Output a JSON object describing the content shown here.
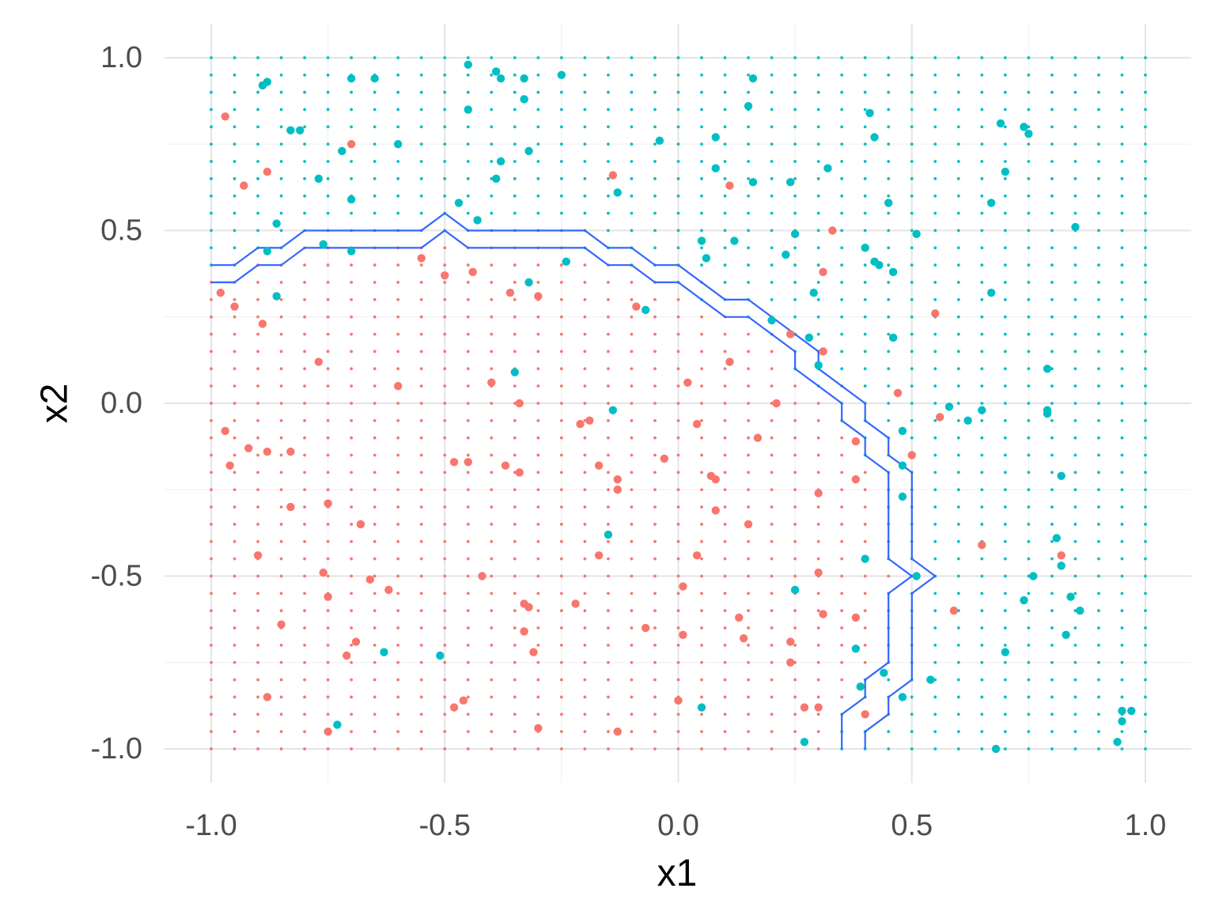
{
  "chart_data": {
    "type": "scatter",
    "title": "",
    "xlabel": "x1",
    "ylabel": "x2",
    "xlim": [
      -1.1,
      1.1
    ],
    "ylim": [
      -1.1,
      1.1
    ],
    "x_ticks": [
      -1.0,
      -0.5,
      0.0,
      0.5,
      1.0
    ],
    "y_ticks": [
      -1.0,
      -0.5,
      0.0,
      0.5,
      1.0
    ],
    "x_tick_labels": [
      "-1.0",
      "-0.5",
      "0.0",
      "0.5",
      "1.0"
    ],
    "y_tick_labels": [
      "-1.0",
      "-0.5",
      "0.0",
      "0.5",
      "1.0"
    ],
    "grid": true,
    "legend": "none",
    "colors": {
      "class_red": "#F8766D",
      "class_teal": "#00BFC4",
      "boundary": "#3366FF",
      "grid_major": "#e5e5e5",
      "grid_minor": "#f2f2f2"
    },
    "background_grid": {
      "x_range": [
        -1.0,
        1.0
      ],
      "y_range": [
        -1.0,
        1.0
      ],
      "step": 0.05,
      "rule": "red if point lies below/left of the lower boundary line, teal otherwise"
    },
    "boundaries": [
      {
        "name": "",
        "points": [
          [
            -1.0,
            0.4
          ],
          [
            -0.95,
            0.4
          ],
          [
            -0.9,
            0.45
          ],
          [
            -0.85,
            0.45
          ],
          [
            -0.8,
            0.5
          ],
          [
            -0.55,
            0.5
          ],
          [
            -0.5,
            0.55
          ],
          [
            -0.45,
            0.5
          ],
          [
            -0.2,
            0.5
          ],
          [
            -0.15,
            0.45
          ],
          [
            -0.1,
            0.45
          ],
          [
            -0.05,
            0.4
          ],
          [
            0.0,
            0.4
          ],
          [
            0.1,
            0.3
          ],
          [
            0.15,
            0.3
          ],
          [
            0.2,
            0.25
          ],
          [
            0.25,
            0.2
          ],
          [
            0.3,
            0.15
          ],
          [
            0.3,
            0.1
          ],
          [
            0.35,
            0.05
          ],
          [
            0.4,
            0.0
          ],
          [
            0.4,
            -0.05
          ],
          [
            0.45,
            -0.1
          ],
          [
            0.45,
            -0.15
          ],
          [
            0.5,
            -0.2
          ],
          [
            0.5,
            -0.45
          ],
          [
            0.55,
            -0.5
          ],
          [
            0.5,
            -0.55
          ],
          [
            0.5,
            -0.8
          ],
          [
            0.45,
            -0.85
          ],
          [
            0.45,
            -0.9
          ],
          [
            0.4,
            -0.95
          ],
          [
            0.4,
            -1.0
          ]
        ]
      },
      {
        "name": "",
        "points": [
          [
            -1.0,
            0.35
          ],
          [
            -0.95,
            0.35
          ],
          [
            -0.9,
            0.4
          ],
          [
            -0.85,
            0.4
          ],
          [
            -0.8,
            0.45
          ],
          [
            -0.55,
            0.45
          ],
          [
            -0.5,
            0.5
          ],
          [
            -0.45,
            0.45
          ],
          [
            -0.2,
            0.45
          ],
          [
            -0.15,
            0.4
          ],
          [
            -0.1,
            0.4
          ],
          [
            -0.05,
            0.35
          ],
          [
            0.0,
            0.35
          ],
          [
            0.1,
            0.25
          ],
          [
            0.15,
            0.25
          ],
          [
            0.2,
            0.2
          ],
          [
            0.25,
            0.15
          ],
          [
            0.25,
            0.1
          ],
          [
            0.3,
            0.05
          ],
          [
            0.35,
            0.0
          ],
          [
            0.35,
            -0.05
          ],
          [
            0.4,
            -0.1
          ],
          [
            0.4,
            -0.15
          ],
          [
            0.45,
            -0.2
          ],
          [
            0.45,
            -0.45
          ],
          [
            0.5,
            -0.5
          ],
          [
            0.45,
            -0.55
          ],
          [
            0.45,
            -0.75
          ],
          [
            0.4,
            -0.8
          ],
          [
            0.4,
            -0.85
          ],
          [
            0.35,
            -0.9
          ],
          [
            0.35,
            -1.0
          ]
        ]
      }
    ],
    "series": [
      {
        "name": "",
        "color": "#F8766D",
        "points": [
          [
            -0.97,
            0.83
          ],
          [
            -0.93,
            0.63
          ],
          [
            -0.88,
            0.67
          ],
          [
            -0.7,
            0.75
          ],
          [
            -0.14,
            0.66
          ],
          [
            0.11,
            0.63
          ],
          [
            0.33,
            0.5
          ],
          [
            0.31,
            0.38
          ],
          [
            -0.55,
            0.42
          ],
          [
            -0.5,
            0.37
          ],
          [
            -0.44,
            0.38
          ],
          [
            -0.36,
            0.32
          ],
          [
            -0.3,
            0.31
          ],
          [
            -0.09,
            0.28
          ],
          [
            -0.98,
            0.32
          ],
          [
            -0.95,
            0.28
          ],
          [
            -0.89,
            0.23
          ],
          [
            -0.77,
            0.12
          ],
          [
            -0.6,
            0.05
          ],
          [
            -0.4,
            0.06
          ],
          [
            -0.34,
            0.0
          ],
          [
            -0.97,
            -0.08
          ],
          [
            -0.92,
            -0.13
          ],
          [
            -0.88,
            -0.14
          ],
          [
            -0.83,
            -0.14
          ],
          [
            -0.96,
            -0.18
          ],
          [
            -0.83,
            -0.3
          ],
          [
            -0.75,
            -0.29
          ],
          [
            -0.68,
            -0.35
          ],
          [
            -0.9,
            -0.44
          ],
          [
            -0.76,
            -0.49
          ],
          [
            -0.66,
            -0.51
          ],
          [
            -0.62,
            -0.54
          ],
          [
            -0.75,
            -0.56
          ],
          [
            -0.85,
            -0.64
          ],
          [
            -0.69,
            -0.69
          ],
          [
            -0.71,
            -0.73
          ],
          [
            -0.88,
            -0.85
          ],
          [
            -0.75,
            -0.95
          ],
          [
            -0.48,
            -0.17
          ],
          [
            -0.45,
            -0.17
          ],
          [
            -0.37,
            -0.18
          ],
          [
            -0.34,
            -0.2
          ],
          [
            -0.21,
            -0.06
          ],
          [
            -0.19,
            -0.05
          ],
          [
            -0.17,
            -0.18
          ],
          [
            -0.13,
            -0.22
          ],
          [
            -0.13,
            -0.25
          ],
          [
            -0.17,
            -0.44
          ],
          [
            -0.42,
            -0.5
          ],
          [
            -0.33,
            -0.58
          ],
          [
            -0.32,
            -0.59
          ],
          [
            -0.22,
            -0.58
          ],
          [
            -0.33,
            -0.66
          ],
          [
            -0.31,
            -0.72
          ],
          [
            -0.46,
            -0.86
          ],
          [
            -0.48,
            -0.88
          ],
          [
            -0.3,
            -0.94
          ],
          [
            -0.13,
            -0.95
          ],
          [
            0.02,
            0.06
          ],
          [
            0.04,
            -0.06
          ],
          [
            -0.03,
            -0.16
          ],
          [
            0.07,
            -0.21
          ],
          [
            0.08,
            -0.22
          ],
          [
            0.08,
            -0.31
          ],
          [
            0.17,
            -0.1
          ],
          [
            0.21,
            0.0
          ],
          [
            0.11,
            0.12
          ],
          [
            0.24,
            0.2
          ],
          [
            0.31,
            0.15
          ],
          [
            0.15,
            -0.35
          ],
          [
            0.04,
            -0.44
          ],
          [
            0.01,
            -0.53
          ],
          [
            0.13,
            -0.62
          ],
          [
            0.14,
            -0.68
          ],
          [
            0.01,
            -0.67
          ],
          [
            -0.07,
            -0.65
          ],
          [
            0.0,
            -0.86
          ],
          [
            0.24,
            -0.69
          ],
          [
            0.24,
            -0.75
          ],
          [
            0.3,
            -0.49
          ],
          [
            0.31,
            -0.61
          ],
          [
            0.3,
            -0.88
          ],
          [
            0.27,
            -0.88
          ],
          [
            0.38,
            -0.11
          ],
          [
            0.38,
            -0.22
          ],
          [
            0.3,
            -0.26
          ],
          [
            0.38,
            -0.62
          ],
          [
            0.4,
            -0.9
          ],
          [
            0.47,
            0.03
          ],
          [
            0.5,
            -0.15
          ],
          [
            0.56,
            -0.04
          ],
          [
            0.55,
            0.26
          ],
          [
            0.59,
            -0.6
          ],
          [
            0.65,
            -0.41
          ],
          [
            0.82,
            -0.44
          ]
        ]
      },
      {
        "name": "",
        "color": "#00BFC4",
        "points": [
          [
            -0.89,
            0.92
          ],
          [
            -0.88,
            0.93
          ],
          [
            -0.7,
            0.94
          ],
          [
            -0.65,
            0.94
          ],
          [
            -0.45,
            0.98
          ],
          [
            -0.39,
            0.96
          ],
          [
            -0.38,
            0.94
          ],
          [
            -0.33,
            0.94
          ],
          [
            -0.25,
            0.95
          ],
          [
            -0.45,
            0.85
          ],
          [
            -0.33,
            0.88
          ],
          [
            -0.83,
            0.79
          ],
          [
            -0.81,
            0.79
          ],
          [
            -0.72,
            0.73
          ],
          [
            -0.6,
            0.75
          ],
          [
            -0.38,
            0.7
          ],
          [
            -0.32,
            0.73
          ],
          [
            -0.39,
            0.65
          ],
          [
            -0.77,
            0.65
          ],
          [
            -0.7,
            0.59
          ],
          [
            -0.47,
            0.58
          ],
          [
            -0.43,
            0.53
          ],
          [
            -0.86,
            0.52
          ],
          [
            -0.88,
            0.44
          ],
          [
            -0.76,
            0.46
          ],
          [
            -0.7,
            0.44
          ],
          [
            -0.24,
            0.41
          ],
          [
            -0.32,
            0.35
          ],
          [
            -0.86,
            0.31
          ],
          [
            -0.13,
            0.61
          ],
          [
            -0.04,
            0.76
          ],
          [
            0.08,
            0.77
          ],
          [
            0.08,
            0.68
          ],
          [
            0.15,
            0.86
          ],
          [
            0.16,
            0.94
          ],
          [
            0.16,
            0.64
          ],
          [
            0.24,
            0.64
          ],
          [
            0.32,
            0.68
          ],
          [
            0.25,
            0.49
          ],
          [
            0.05,
            0.47
          ],
          [
            0.06,
            0.42
          ],
          [
            0.12,
            0.47
          ],
          [
            0.23,
            0.43
          ],
          [
            0.29,
            0.32
          ],
          [
            0.2,
            0.24
          ],
          [
            0.28,
            0.19
          ],
          [
            0.3,
            0.11
          ],
          [
            -0.35,
            0.09
          ],
          [
            -0.14,
            -0.02
          ],
          [
            -0.07,
            0.27
          ],
          [
            0.41,
            0.84
          ],
          [
            0.42,
            0.77
          ],
          [
            0.4,
            0.45
          ],
          [
            0.42,
            0.41
          ],
          [
            0.43,
            0.4
          ],
          [
            0.46,
            0.38
          ],
          [
            0.45,
            0.58
          ],
          [
            0.51,
            0.49
          ],
          [
            0.46,
            0.19
          ],
          [
            0.48,
            -0.08
          ],
          [
            0.48,
            -0.18
          ],
          [
            0.48,
            -0.27
          ],
          [
            0.51,
            -0.5
          ],
          [
            0.4,
            -0.45
          ],
          [
            0.25,
            -0.54
          ],
          [
            0.54,
            -0.8
          ],
          [
            0.44,
            -0.78
          ],
          [
            0.48,
            -0.85
          ],
          [
            0.38,
            -0.71
          ],
          [
            0.39,
            -0.82
          ],
          [
            0.27,
            -0.98
          ],
          [
            0.05,
            -0.88
          ],
          [
            -0.15,
            -0.38
          ],
          [
            -0.63,
            -0.72
          ],
          [
            -0.51,
            -0.73
          ],
          [
            -0.73,
            -0.93
          ],
          [
            0.58,
            -0.01
          ],
          [
            0.62,
            -0.05
          ],
          [
            0.65,
            -0.02
          ],
          [
            0.67,
            0.58
          ],
          [
            0.67,
            0.32
          ],
          [
            0.69,
            0.81
          ],
          [
            0.7,
            0.67
          ],
          [
            0.74,
            0.8
          ],
          [
            0.75,
            0.78
          ],
          [
            0.79,
            0.1
          ],
          [
            0.79,
            -0.02
          ],
          [
            0.79,
            -0.03
          ],
          [
            0.82,
            -0.21
          ],
          [
            0.81,
            -0.39
          ],
          [
            0.82,
            -0.47
          ],
          [
            0.76,
            -0.5
          ],
          [
            0.84,
            -0.56
          ],
          [
            0.86,
            -0.6
          ],
          [
            0.74,
            -0.57
          ],
          [
            0.7,
            -0.72
          ],
          [
            0.83,
            -0.67
          ],
          [
            0.85,
            0.51
          ],
          [
            0.68,
            -1.0
          ],
          [
            0.94,
            -0.98
          ],
          [
            0.95,
            -0.92
          ],
          [
            0.95,
            -0.89
          ],
          [
            0.97,
            -0.89
          ]
        ]
      }
    ]
  }
}
